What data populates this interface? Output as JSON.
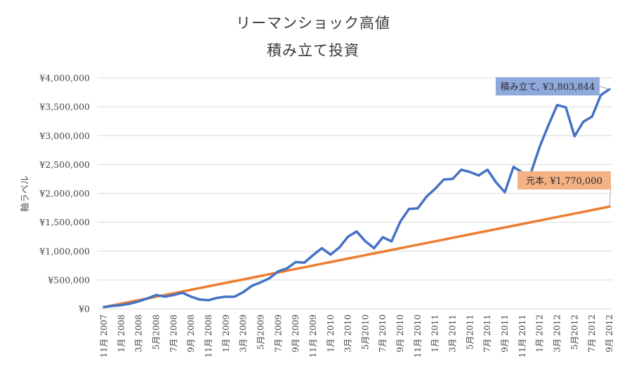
{
  "chart_data": {
    "type": "line",
    "title": "リーマンショック高値",
    "subtitle": "積み立て投資",
    "ylabel": "軸ラベル",
    "xlabel": "",
    "ylim": [
      0,
      4000000
    ],
    "y_ticks": [
      0,
      500000,
      1000000,
      1500000,
      2000000,
      2500000,
      3000000,
      3500000,
      4000000
    ],
    "y_tick_labels": [
      "¥0",
      "¥500,000",
      "¥1,000,000",
      "¥1,500,000",
      "¥2,000,000",
      "¥2,500,000",
      "¥3,000,000",
      "¥3,500,000",
      "¥4,000,000"
    ],
    "grid": true,
    "x_tick_labels": [
      "11月 2007",
      "1月 2008",
      "3月 2008",
      "5月2008",
      "7月 2008",
      "9月 2008",
      "11月 2008",
      "1月 2009",
      "3月 2009",
      "5月2009",
      "7月 2009",
      "9月 2009",
      "11月 2009",
      "1月 2010",
      "3月 2010",
      "5月2010",
      "7月 2010",
      "9月 2010",
      "11月 2010",
      "1月 2011",
      "3月 2011",
      "5月2011",
      "7月 2011",
      "9月 2011",
      "11月 2011",
      "1月 2012",
      "3月 2012",
      "5月2012",
      "7月 2012",
      "9月 2012"
    ],
    "series": [
      {
        "name": "積み立て",
        "color": "#4472c4",
        "values": [
          30000,
          50000,
          65000,
          90000,
          130000,
          180000,
          240000,
          210000,
          240000,
          280000,
          210000,
          160000,
          150000,
          190000,
          210000,
          210000,
          290000,
          400000,
          460000,
          530000,
          650000,
          700000,
          810000,
          800000,
          930000,
          1050000,
          940000,
          1060000,
          1250000,
          1340000,
          1170000,
          1050000,
          1240000,
          1170000,
          1510000,
          1730000,
          1740000,
          1940000,
          2080000,
          2240000,
          2250000,
          2410000,
          2370000,
          2310000,
          2410000,
          2190000,
          2020000,
          2460000,
          2360000,
          2360000,
          2810000,
          3180000,
          3530000,
          3490000,
          2990000,
          3240000,
          3330000,
          3700000,
          3803844
        ],
        "end_label": "積み立て, ¥3,803,844",
        "label_fill": "#8fa9dc"
      },
      {
        "name": "元本",
        "color": "#ed7d31",
        "values": [
          30000,
          60000,
          90000,
          120000,
          150000,
          180000,
          210000,
          240000,
          270000,
          300000,
          330000,
          360000,
          390000,
          420000,
          450000,
          480000,
          510000,
          540000,
          570000,
          600000,
          630000,
          660000,
          690000,
          720000,
          750000,
          780000,
          810000,
          840000,
          870000,
          900000,
          930000,
          960000,
          990000,
          1020000,
          1050000,
          1080000,
          1110000,
          1140000,
          1170000,
          1200000,
          1230000,
          1260000,
          1290000,
          1320000,
          1350000,
          1380000,
          1410000,
          1440000,
          1470000,
          1500000,
          1530000,
          1560000,
          1590000,
          1620000,
          1650000,
          1680000,
          1710000,
          1740000,
          1770000
        ],
        "end_label": "元本, ¥1,770,000",
        "label_fill": "#f4b183"
      }
    ]
  }
}
